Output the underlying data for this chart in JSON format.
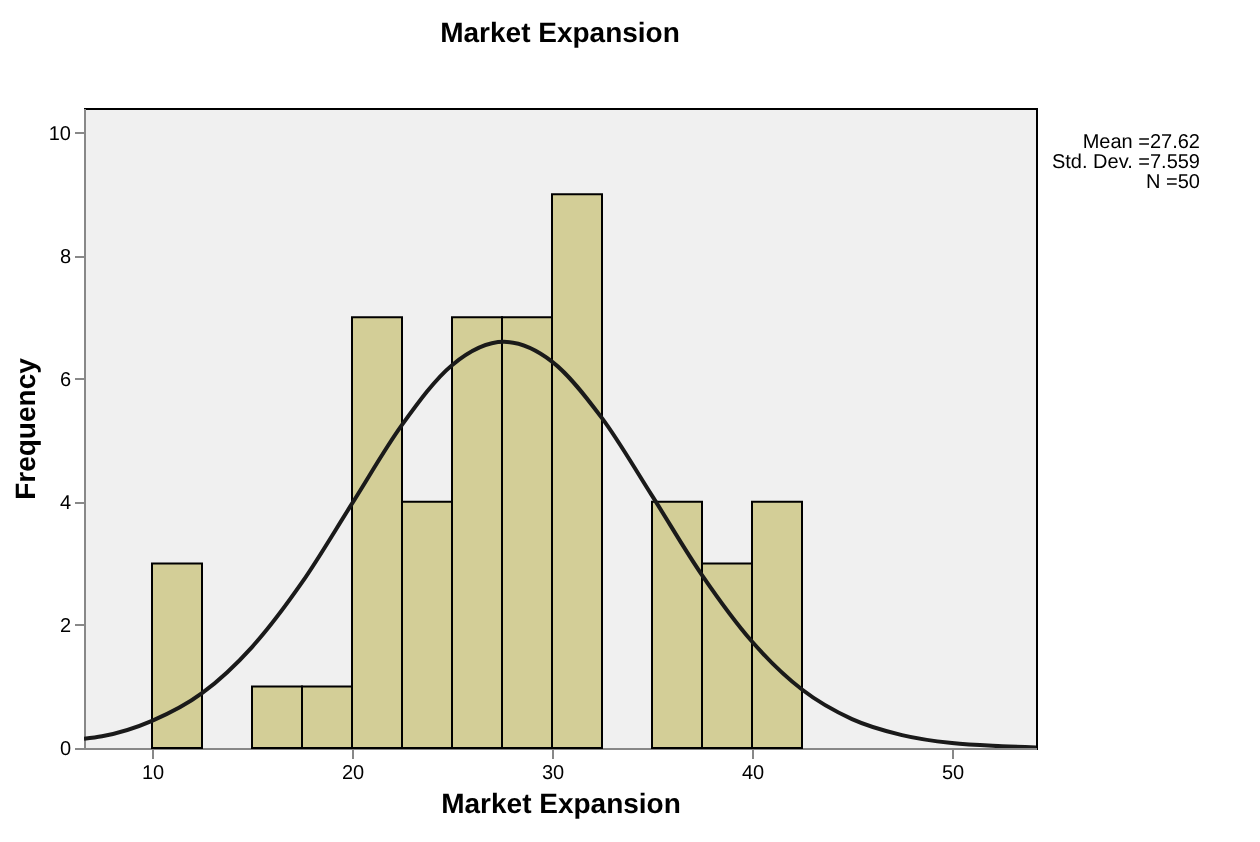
{
  "chart_data": {
    "type": "histogram",
    "title": "Market Expansion",
    "xlabel": "Market Expansion",
    "ylabel": "Frequency",
    "bins": [
      10,
      12.5,
      15,
      17.5,
      20,
      22.5,
      25,
      27.5,
      30,
      32.5,
      35,
      37.5,
      40,
      42.5
    ],
    "values": [
      3,
      0,
      1,
      1,
      7,
      4,
      7,
      7,
      9,
      0,
      4,
      3,
      4
    ],
    "color": "#d3ce97",
    "series": [
      {
        "type": "line",
        "color": "#1a1a1a",
        "x": [
          6.6,
          7.5,
          10,
          12.5,
          15,
          17.5,
          20,
          22.5,
          25,
          27.6,
          30,
          32.5,
          35,
          37.5,
          40,
          42.5,
          45,
          47.5,
          50,
          52.5,
          54.2
        ],
        "values": [
          0.15,
          0.19,
          0.44,
          0.89,
          1.64,
          2.69,
          3.97,
          5.25,
          6.22,
          6.6,
          6.28,
          5.36,
          4.1,
          2.81,
          1.73,
          0.95,
          0.47,
          0.21,
          0.08,
          0.03,
          0.01
        ]
      }
    ],
    "xlim": [
      6.6,
      54.2
    ],
    "xticks": [
      10,
      20,
      30,
      40,
      50
    ],
    "ylim": [
      0,
      10.4
    ],
    "yticks": [
      0,
      2,
      4,
      6,
      8,
      10
    ],
    "grid": false,
    "annotations": [
      "Mean =27.62",
      "Std. Dev. =7.559",
      "N =50"
    ]
  }
}
